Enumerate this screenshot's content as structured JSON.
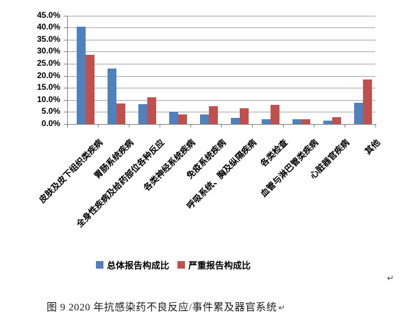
{
  "figure": {
    "caption": "图 9  2020 年抗感染药不良反应/事件累及器官系统",
    "caption_return_mark": "↵",
    "stray_return_mark": "↵"
  },
  "chart_data": {
    "type": "bar",
    "title": "",
    "xlabel": "",
    "ylabel": "",
    "unit": "percent",
    "categories": [
      "皮肤及皮下组织类疾病",
      "胃肠系统疾病",
      "全身性疾病及给药部位各种反应",
      "各类神经系统疾病",
      "免疫系统疾病",
      "呼吸系统、胸及纵隔疾病",
      "各类检查",
      "血管与淋巴管类疾病",
      "心脏器官疾病",
      "其他"
    ],
    "series": [
      {
        "name": "总体报告构成比",
        "color": "#4F81BD",
        "values": [
          40.2,
          23.0,
          8.3,
          5.1,
          4.0,
          2.5,
          2.1,
          2.0,
          1.5,
          8.7
        ]
      },
      {
        "name": "严重报告构成比",
        "color": "#C0504D",
        "values": [
          28.7,
          8.4,
          11.2,
          3.9,
          7.5,
          6.6,
          8.0,
          2.0,
          2.7,
          18.4
        ]
      }
    ],
    "ylim": [
      0,
      45
    ],
    "ytick_step": 5,
    "ytick_labels": [
      "0.0%",
      "5.0%",
      "10.0%",
      "15.0%",
      "20.0%",
      "25.0%",
      "30.0%",
      "35.0%",
      "40.0%",
      "45.0%"
    ],
    "grid": true,
    "legend_position": "bottom",
    "gridline_color": "#A6A6A6",
    "axis_color": "#7F7F7F"
  }
}
